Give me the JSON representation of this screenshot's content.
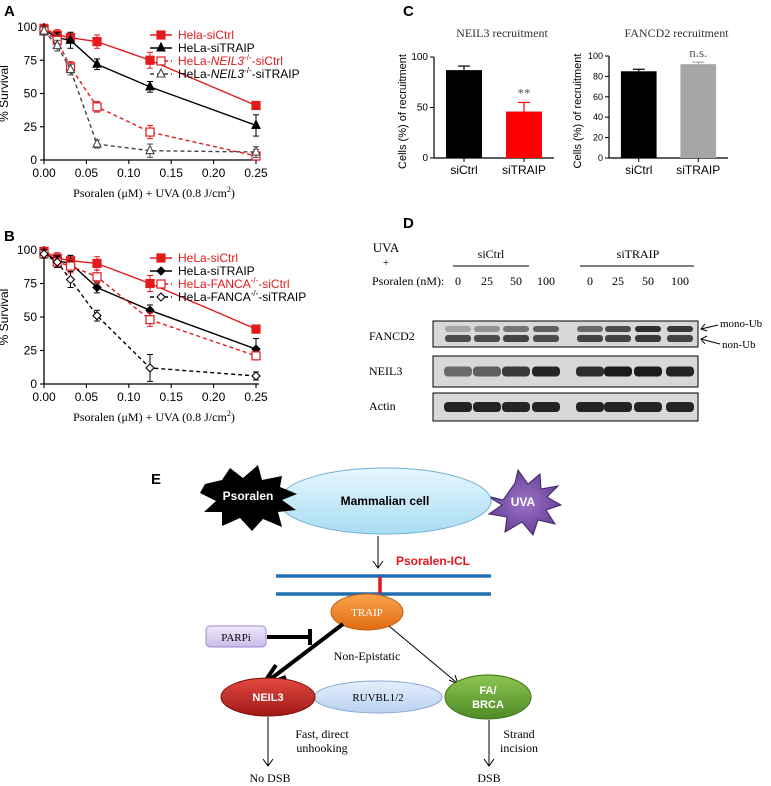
{
  "panels": {
    "A": {
      "label": "A"
    },
    "B": {
      "label": "B"
    },
    "C": {
      "label": "C"
    },
    "D": {
      "label": "D"
    },
    "E": {
      "label": "E"
    }
  },
  "chart_data": [
    {
      "id": "A",
      "type": "line",
      "ylabel": "% Survival",
      "xlabel_prefix": "Psoralen (μM) + UVA (0.8 J/cm",
      "xlabel_sup": "2",
      "xlabel_suffix": ")",
      "xlim": [
        0,
        0.25
      ],
      "ylim": [
        0,
        100
      ],
      "xticks": [
        0.0,
        0.05,
        0.1,
        0.15,
        0.2,
        0.25
      ],
      "xtick_labels": [
        "0.00",
        "0.05",
        "0.10",
        "0.15",
        "0.20",
        "0.25"
      ],
      "yticks": [
        0,
        25,
        50,
        75,
        100
      ],
      "ytick_labels": [
        "0",
        "25",
        "50",
        "75",
        "100"
      ],
      "x": [
        0,
        0.0156,
        0.03125,
        0.0625,
        0.125,
        0.25
      ],
      "series": [
        {
          "name": "Hela-siCtrl",
          "label_parts": [
            {
              "text": "Hela-siCtrl"
            }
          ],
          "color": "#e41a1c",
          "dash": false,
          "marker": "square-filled",
          "values": [
            99,
            94,
            92,
            89,
            75,
            41
          ],
          "errors": [
            2,
            4,
            4,
            5,
            6,
            3
          ]
        },
        {
          "name": "HeLa-siTRAIP",
          "label_parts": [
            {
              "text": "HeLa-siTRAIP"
            }
          ],
          "color": "#000000",
          "dash": false,
          "marker": "triangle-filled",
          "values": [
            98,
            92,
            90,
            72,
            55,
            26
          ],
          "errors": [
            2,
            4,
            6,
            4,
            4,
            8
          ]
        },
        {
          "name": "HeLa-NEIL3-/--siCtrl",
          "label_parts": [
            {
              "text": "HeLa-"
            },
            {
              "text": "NEIL3",
              "italic": true
            },
            {
              "text": "-/-",
              "sup": true
            },
            {
              "text": "-siCtrl"
            }
          ],
          "color": "#e41a1c",
          "dash": true,
          "marker": "square-open",
          "values": [
            97,
            90,
            70,
            40,
            21,
            3
          ],
          "errors": [
            3,
            4,
            4,
            4,
            5,
            5
          ]
        },
        {
          "name": "HeLa-NEIL3-/--siTRAIP",
          "label_parts": [
            {
              "text": "HeLa-"
            },
            {
              "text": "NEIL3",
              "italic": true
            },
            {
              "text": "-/-",
              "sup": true
            },
            {
              "text": "-siTRAIP"
            }
          ],
          "color": "#444444",
          "dash": true,
          "marker": "triangle-open",
          "values": [
            97,
            86,
            68,
            12,
            7,
            6
          ],
          "errors": [
            3,
            4,
            4,
            3,
            5,
            4
          ]
        }
      ]
    },
    {
      "id": "B",
      "type": "line",
      "ylabel": "% Survival",
      "xlabel_prefix": "Psoralen (μM) + UVA (0.8 J/cm",
      "xlabel_sup": "2",
      "xlabel_suffix": ")",
      "xlim": [
        0,
        0.25
      ],
      "ylim": [
        0,
        100
      ],
      "xticks": [
        0.0,
        0.05,
        0.1,
        0.15,
        0.2,
        0.25
      ],
      "xtick_labels": [
        "0.00",
        "0.05",
        "0.10",
        "0.15",
        "0.20",
        "0.25"
      ],
      "yticks": [
        0,
        25,
        50,
        75,
        100
      ],
      "ytick_labels": [
        "0",
        "25",
        "50",
        "75",
        "100"
      ],
      "x": [
        0,
        0.0156,
        0.03125,
        0.0625,
        0.125,
        0.25
      ],
      "series": [
        {
          "name": "HeLa-siCtrl",
          "label_parts": [
            {
              "text": "HeLa-siCtrl"
            }
          ],
          "color": "#e41a1c",
          "dash": false,
          "marker": "square-filled",
          "values": [
            99,
            94,
            92,
            90,
            75,
            41
          ],
          "errors": [
            2,
            4,
            4,
            5,
            6,
            3
          ]
        },
        {
          "name": "HeLa-siTRAIP",
          "label_parts": [
            {
              "text": "HeLa-siTRAIP"
            }
          ],
          "color": "#000000",
          "dash": false,
          "marker": "diamond-filled",
          "values": [
            98,
            92,
            90,
            72,
            55,
            26
          ],
          "errors": [
            2,
            4,
            6,
            4,
            4,
            8
          ]
        },
        {
          "name": "HeLa-FANCA-/--siCtrl",
          "label_parts": [
            {
              "text": "HeLa-FANCA"
            },
            {
              "text": "-/-",
              "sup": true
            },
            {
              "text": "-siCtrl"
            }
          ],
          "color": "#e41a1c",
          "dash": true,
          "marker": "square-open",
          "values": [
            97,
            91,
            88,
            80,
            48,
            21
          ],
          "errors": [
            3,
            4,
            5,
            5,
            5,
            3
          ]
        },
        {
          "name": "HeLa-FANCA-/--siTRAIP",
          "label_parts": [
            {
              "text": "HeLa-FANCA"
            },
            {
              "text": "-/-",
              "sup": true
            },
            {
              "text": "-siTRAIP"
            }
          ],
          "color": "#000000",
          "dash": true,
          "marker": "diamond-open",
          "values": [
            97,
            91,
            78,
            51,
            12,
            6
          ],
          "errors": [
            3,
            4,
            6,
            4,
            10,
            3
          ]
        }
      ]
    },
    {
      "id": "C1",
      "type": "bar",
      "title": "NEIL3 recruitment",
      "ylabel": "Cells (%) of recruitment",
      "ylim": [
        0,
        100
      ],
      "yticks": [
        0,
        50,
        100
      ],
      "ytick_labels": [
        "0",
        "50",
        "100"
      ],
      "categories": [
        "siCtrl",
        "siTRAIP"
      ],
      "values": [
        87,
        46
      ],
      "errors": [
        4,
        9
      ],
      "colors": [
        "#000000",
        "#ff0000"
      ],
      "annotations": [
        "",
        "**"
      ]
    },
    {
      "id": "C2",
      "type": "bar",
      "title": "FANCD2 recruitment",
      "ylabel": "Cells (%) of recruitment",
      "ylim": [
        0,
        100
      ],
      "yticks": [
        0,
        20,
        40,
        60,
        80,
        100
      ],
      "ytick_labels": [
        "0",
        "20",
        "40",
        "60",
        "80",
        "100"
      ],
      "categories": [
        "siCtrl",
        "siTRAIP"
      ],
      "values": [
        85,
        92
      ],
      "errors": [
        2,
        2
      ],
      "colors": [
        "#000000",
        "#a6a6a6"
      ],
      "annotations": [
        "",
        "n.s."
      ]
    }
  ],
  "blot": {
    "uva_label": "UVA",
    "plus_label": "+",
    "psoralen_label": "Psoralen (nM):",
    "groups": [
      "siCtrl",
      "siTRAIP"
    ],
    "doses": [
      "0",
      "25",
      "50",
      "100",
      "0",
      "25",
      "50",
      "100"
    ],
    "rows": [
      "FANCD2",
      "NEIL3",
      "Actin"
    ],
    "mono_ub": "mono-Ub",
    "non_ub": "non-Ub"
  },
  "schematic": {
    "psoralen": "Psoralen",
    "mammalian_cell": "Mammalian cell",
    "uva": "UVA",
    "icl": "Psoralen-ICL",
    "traip": "TRAIP",
    "parpi": "PARPi",
    "non_epistatic": "Non-Epistatic",
    "neil3": "NEIL3",
    "ruvbl": "RUVBL1/2",
    "fa_line1": "FA/",
    "fa_line2": "BRCA",
    "fast_line1": "Fast, direct",
    "fast_line2": "unhooking",
    "strand_line1": "Strand",
    "strand_line2": "incision",
    "no_dsb": "No DSB",
    "dsb": "DSB",
    "colors": {
      "cell": "#c9ecfb",
      "uva": "#7b52a8",
      "icl": "#e8141c",
      "dna": "#1f6fb0",
      "traip": "#ee7a1e",
      "neil3": "#c62828",
      "fa": "#6aa436",
      "ruvbl": "#c7dcf5",
      "parpi": "#ddd2f2"
    }
  }
}
